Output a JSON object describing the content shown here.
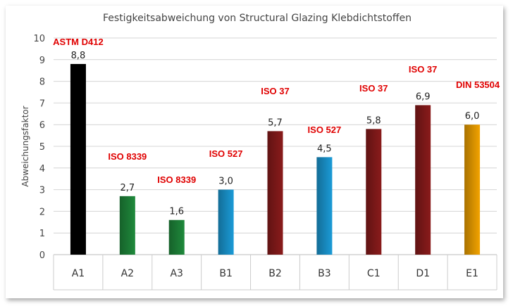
{
  "chart_data": {
    "type": "bar",
    "title": "Festigkeitsabweichung von Structural Glazing Klebdichtstoffen",
    "xlabel": "",
    "ylabel": "Abweichungsfaktor",
    "ylim": [
      0,
      10
    ],
    "yticks": [
      "0",
      "1",
      "2",
      "3",
      "4",
      "5",
      "6",
      "7",
      "8",
      "9",
      "10"
    ],
    "grid": true,
    "categories": [
      "A1",
      "A2",
      "A3",
      "B1",
      "B2",
      "B3",
      "C1",
      "D1",
      "E1"
    ],
    "values": [
      8.8,
      2.7,
      1.6,
      3.0,
      5.7,
      4.5,
      5.8,
      6.9,
      6.0
    ],
    "value_labels": [
      "8,8",
      "2,7",
      "1,6",
      "3,0",
      "5,7",
      "4,5",
      "5,8",
      "6,9",
      "6,0"
    ],
    "standards": [
      "ASTM D412",
      "ISO 8339",
      "ISO 8339",
      "ISO 527",
      "ISO 37",
      "ISO 527",
      "ISO 37",
      "ISO 37",
      "DIN 53504"
    ],
    "colors": [
      "#000000",
      "#1f8a3c",
      "#1f8a3c",
      "#1b9bd7",
      "#8a1b1b",
      "#1b9bd7",
      "#8a1b1b",
      "#8a1b1b",
      "#f2a300"
    ]
  }
}
